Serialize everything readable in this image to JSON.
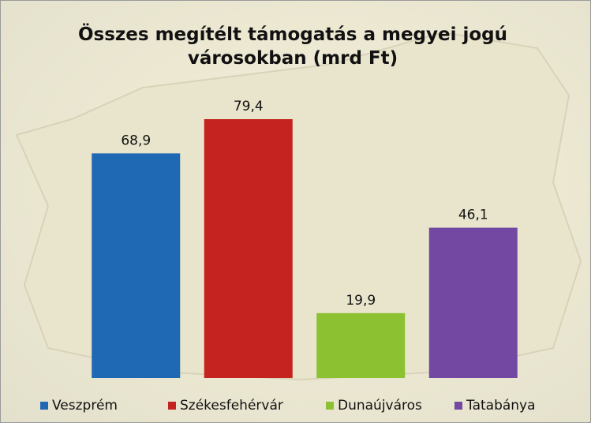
{
  "chart_data": {
    "type": "bar",
    "title": "Összes megítélt támogatás a megyei jogú városokban (mrd Ft)",
    "series": [
      {
        "name": "Veszprém",
        "color": "#1f68b4",
        "values": [
          68.9
        ],
        "value_labels": [
          "68,9"
        ]
      },
      {
        "name": "Székesfehérvár",
        "color": "#c4231f",
        "values": [
          79.4
        ],
        "value_labels": [
          "79,4"
        ]
      },
      {
        "name": "Dunaújváros",
        "color": "#8cc132",
        "values": [
          19.9
        ],
        "value_labels": [
          "19,9"
        ]
      },
      {
        "name": "Tatabánya",
        "color": "#7248a3",
        "values": [
          46.1
        ],
        "value_labels": [
          "46,1"
        ]
      }
    ],
    "legend": "bottom"
  }
}
